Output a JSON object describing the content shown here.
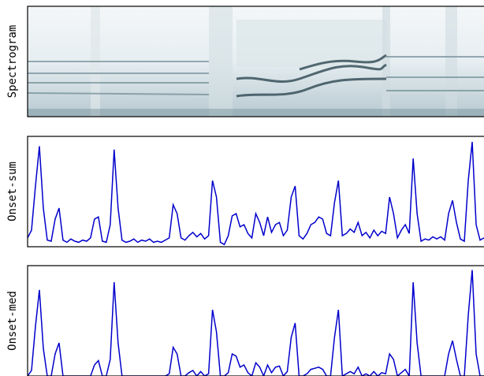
{
  "chart_data": [
    {
      "type": "image",
      "ylabel": "Spectrogram"
    },
    {
      "type": "line",
      "ylabel": "Onset-sum",
      "ylim": [
        0,
        1
      ],
      "color": "#0000cc",
      "values": [
        0.08,
        0.15,
        0.55,
        0.91,
        0.35,
        0.06,
        0.05,
        0.25,
        0.35,
        0.06,
        0.04,
        0.07,
        0.05,
        0.04,
        0.06,
        0.05,
        0.08,
        0.25,
        0.27,
        0.05,
        0.04,
        0.2,
        0.88,
        0.35,
        0.06,
        0.04,
        0.05,
        0.07,
        0.04,
        0.06,
        0.05,
        0.07,
        0.04,
        0.05,
        0.04,
        0.06,
        0.08,
        0.38,
        0.3,
        0.08,
        0.06,
        0.1,
        0.13,
        0.09,
        0.12,
        0.07,
        0.1,
        0.6,
        0.45,
        0.04,
        0.02,
        0.1,
        0.28,
        0.3,
        0.18,
        0.2,
        0.12,
        0.08,
        0.3,
        0.22,
        0.1,
        0.27,
        0.13,
        0.2,
        0.22,
        0.1,
        0.15,
        0.45,
        0.55,
        0.1,
        0.07,
        0.12,
        0.2,
        0.22,
        0.27,
        0.25,
        0.12,
        0.1,
        0.4,
        0.6,
        0.1,
        0.12,
        0.16,
        0.13,
        0.22,
        0.1,
        0.13,
        0.08,
        0.15,
        0.1,
        0.14,
        0.12,
        0.45,
        0.3,
        0.08,
        0.15,
        0.2,
        0.12,
        0.8,
        0.3,
        0.05,
        0.07,
        0.06,
        0.09,
        0.07,
        0.09,
        0.06,
        0.3,
        0.42,
        0.22,
        0.07,
        0.05,
        0.6,
        0.95,
        0.2,
        0.06,
        0.08
      ]
    },
    {
      "type": "line",
      "ylabel": "Onset-med",
      "ylim": [
        0,
        1
      ],
      "color": "#0000cc",
      "values": [
        0,
        0.05,
        0.45,
        0.78,
        0.25,
        0,
        0,
        0.2,
        0.3,
        0,
        0,
        0,
        0,
        0,
        0,
        0,
        0,
        0.1,
        0.14,
        0,
        0,
        0.15,
        0.85,
        0.3,
        0,
        0,
        0,
        0,
        0,
        0,
        0,
        0,
        0,
        0,
        0,
        0,
        0.02,
        0.26,
        0.2,
        0,
        0,
        0.03,
        0.05,
        0,
        0.04,
        0,
        0.02,
        0.6,
        0.4,
        0,
        0,
        0.03,
        0.2,
        0.18,
        0.08,
        0.1,
        0.03,
        0,
        0.12,
        0.08,
        0,
        0.1,
        0.03,
        0.08,
        0.09,
        0,
        0.04,
        0.35,
        0.48,
        0,
        0,
        0.02,
        0.06,
        0.07,
        0.08,
        0.06,
        0,
        0,
        0.35,
        0.6,
        0,
        0.02,
        0.04,
        0.02,
        0.08,
        0,
        0.02,
        0,
        0.04,
        0,
        0.03,
        0.02,
        0.2,
        0.15,
        0,
        0.03,
        0.06,
        0,
        0.85,
        0.3,
        0,
        0,
        0,
        0,
        0,
        0,
        0,
        0.2,
        0.32,
        0.15,
        0,
        0,
        0.55,
        0.96,
        0.2,
        0,
        0
      ]
    }
  ]
}
